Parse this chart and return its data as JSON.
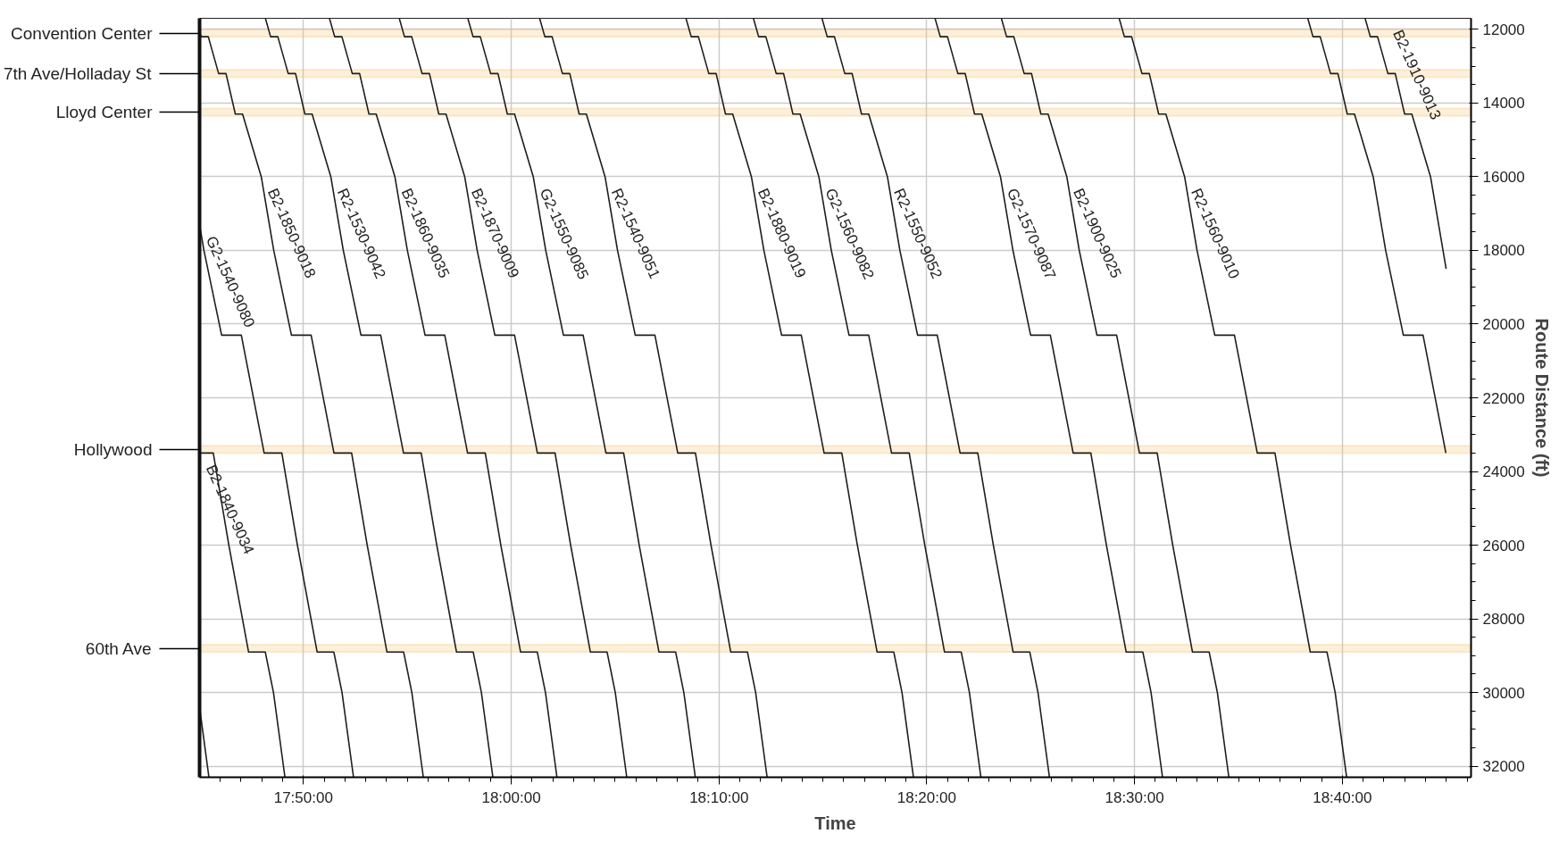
{
  "chart_data": {
    "type": "line",
    "xlabel": "Time",
    "ylabel": "Route Distance (ft)",
    "xlim": [
      17.75,
      18.77
    ],
    "ylim": [
      32300,
      11700
    ],
    "xticks": [
      {
        "value": 17.8333,
        "label": "17:50:00"
      },
      {
        "value": 18.0,
        "label": "18:00:00"
      },
      {
        "value": 18.1667,
        "label": "18:10:00"
      },
      {
        "value": 18.3333,
        "label": "18:20:00"
      },
      {
        "value": 18.5,
        "label": "18:30:00"
      },
      {
        "value": 18.6667,
        "label": "18:40:00"
      }
    ],
    "yticks": [
      12000,
      14000,
      16000,
      18000,
      20000,
      22000,
      24000,
      26000,
      28000,
      30000,
      32000
    ],
    "grid": true,
    "line_style": "solid",
    "bands": [
      {
        "axis": "y",
        "from": 12000,
        "to": 12200,
        "label": "Convention Center",
        "color": "#f6c46c"
      },
      {
        "axis": "y",
        "from": 13100,
        "to": 13300,
        "label": "7th Ave/Holladay St",
        "color": "#f6c46c"
      },
      {
        "axis": "y",
        "from": 14150,
        "to": 14350,
        "label": "Lloyd Center",
        "color": "#f6c46c"
      },
      {
        "axis": "y",
        "from": 23300,
        "to": 23500,
        "label": "Hollywood",
        "color": "#f6c46c"
      },
      {
        "axis": "y",
        "from": 28700,
        "to": 28900,
        "label": "60th Ave",
        "color": "#f6c46c"
      }
    ],
    "series": [
      {
        "color": "#1e1e1e",
        "x": [
          17.75,
          17.7575
        ],
        "values": [
          30400,
          32300
        ]
      },
      {
        "name": "B2-1840-9034",
        "color": "#1e1e1e",
        "x": [
          17.75,
          17.761,
          17.7735,
          17.7893,
          17.8027,
          17.8093,
          17.8185
        ],
        "values": [
          23500,
          23500,
          26000,
          28900,
          28900,
          30000,
          32300
        ]
      },
      {
        "name": "G2-1540-9080",
        "color": "#1e1e1e",
        "x": [
          17.75,
          17.7535,
          17.7677,
          17.7835,
          17.8018,
          17.816,
          17.8285,
          17.8443,
          17.8577,
          17.8643,
          17.8735
        ],
        "values": [
          17300,
          18000,
          20300,
          20300,
          23500,
          23500,
          26000,
          28900,
          28900,
          30000,
          32300
        ]
      },
      {
        "name": "B2-1850-9018",
        "color": "#1e1e1e",
        "x": [
          17.75,
          17.7512,
          17.757,
          17.7653,
          17.7712,
          17.7787,
          17.7845,
          17.7995,
          17.8095,
          17.8237,
          17.8395,
          17.8578,
          17.872,
          17.8845,
          17.9003,
          17.9137,
          17.9203,
          17.9295
        ],
        "values": [
          12050,
          12200,
          12200,
          13200,
          13200,
          14300,
          14300,
          16000,
          18000,
          20300,
          20300,
          23500,
          23500,
          26000,
          28900,
          28900,
          30000,
          32300
        ]
      },
      {
        "name": "R2-1530-9042",
        "color": "#1e1e1e",
        "x": [
          17.8028,
          17.807,
          17.8128,
          17.8211,
          17.827,
          17.8345,
          17.8403,
          17.8553,
          17.8653,
          17.8795,
          17.8953,
          17.9136,
          17.9278,
          17.9403,
          17.9561,
          17.9695,
          17.9761,
          17.9853
        ],
        "values": [
          11700,
          12200,
          12200,
          13200,
          13200,
          14300,
          14300,
          16000,
          18000,
          20300,
          20300,
          23500,
          23500,
          26000,
          28900,
          28900,
          30000,
          32300
        ]
      },
      {
        "name": "B2-1860-9035",
        "color": "#1e1e1e",
        "x": [
          17.8542,
          17.8584,
          17.8642,
          17.8725,
          17.8784,
          17.8859,
          17.8917,
          17.9067,
          17.9167,
          17.9309,
          17.9467,
          17.965,
          17.9792,
          17.9917,
          18.0075,
          18.0209,
          18.0275,
          18.0367
        ],
        "values": [
          11700,
          12200,
          12200,
          13200,
          13200,
          14300,
          14300,
          16000,
          18000,
          20300,
          20300,
          23500,
          23500,
          26000,
          28900,
          28900,
          30000,
          32300
        ]
      },
      {
        "name": "B2-1870-9009",
        "color": "#1e1e1e",
        "x": [
          17.9102,
          17.9144,
          17.9202,
          17.9285,
          17.9344,
          17.9419,
          17.9477,
          17.9627,
          17.9727,
          17.9869,
          18.0027,
          18.021,
          18.0352,
          18.0477,
          18.0635,
          18.0769,
          18.0835,
          18.0927
        ],
        "values": [
          11700,
          12200,
          12200,
          13200,
          13200,
          14300,
          14300,
          16000,
          18000,
          20300,
          20300,
          23500,
          23500,
          26000,
          28900,
          28900,
          30000,
          32300
        ]
      },
      {
        "name": "G2-1550-9085",
        "color": "#1e1e1e",
        "x": [
          17.9652,
          17.9694,
          17.9752,
          17.9835,
          17.9894,
          17.9969,
          18.0027,
          18.0177,
          18.0277,
          18.0419,
          18.0577,
          18.076,
          18.0902,
          18.1027,
          18.1185,
          18.1319,
          18.1385,
          18.1477
        ],
        "values": [
          11700,
          12200,
          12200,
          13200,
          13200,
          14300,
          14300,
          16000,
          18000,
          20300,
          20300,
          23500,
          23500,
          26000,
          28900,
          28900,
          30000,
          32300
        ]
      },
      {
        "name": "R2-1540-9051",
        "color": "#1e1e1e",
        "x": [
          18.0228,
          18.027,
          18.0328,
          18.0411,
          18.047,
          18.0545,
          18.0603,
          18.0753,
          18.0853,
          18.0995,
          18.1153,
          18.1336,
          18.1478,
          18.1603,
          18.1761,
          18.1895,
          18.1961,
          18.2053
        ],
        "values": [
          11700,
          12200,
          12200,
          13200,
          13200,
          14300,
          14300,
          16000,
          18000,
          20300,
          20300,
          23500,
          23500,
          26000,
          28900,
          28900,
          30000,
          32300
        ]
      },
      {
        "name": "B2-1880-9019",
        "color": "#1e1e1e",
        "x": [
          18.1402,
          18.1444,
          18.1502,
          18.1585,
          18.1644,
          18.1719,
          18.1777,
          18.1927,
          18.2027,
          18.2169,
          18.2327,
          18.251,
          18.2652,
          18.2777,
          18.2935,
          18.3069,
          18.3135,
          18.3227
        ],
        "values": [
          11700,
          12200,
          12200,
          13200,
          13200,
          14300,
          14300,
          16000,
          18000,
          20300,
          20300,
          23500,
          23500,
          26000,
          28900,
          28900,
          30000,
          32300
        ]
      },
      {
        "name": "G2-1560-9082",
        "color": "#1e1e1e",
        "x": [
          18.1943,
          18.1985,
          18.2043,
          18.2126,
          18.2185,
          18.226,
          18.2318,
          18.2468,
          18.2568,
          18.271,
          18.2868,
          18.3051,
          18.3193,
          18.3318,
          18.3476,
          18.361,
          18.3676,
          18.3768
        ],
        "values": [
          11700,
          12200,
          12200,
          13200,
          13200,
          14300,
          14300,
          16000,
          18000,
          20300,
          20300,
          23500,
          23500,
          26000,
          28900,
          28900,
          30000,
          32300
        ]
      },
      {
        "name": "R2-1550-9052",
        "color": "#1e1e1e",
        "x": [
          18.2493,
          18.2535,
          18.2593,
          18.2676,
          18.2735,
          18.281,
          18.2868,
          18.3018,
          18.3118,
          18.326,
          18.3418,
          18.3601,
          18.3743,
          18.3868,
          18.4026,
          18.416,
          18.4226,
          18.4318
        ],
        "values": [
          11700,
          12200,
          12200,
          13200,
          13200,
          14300,
          14300,
          16000,
          18000,
          20300,
          20300,
          23500,
          23500,
          26000,
          28900,
          28900,
          30000,
          32300
        ]
      },
      {
        "name": "G2-1570-9087",
        "color": "#1e1e1e",
        "x": [
          18.34,
          18.3442,
          18.35,
          18.3583,
          18.3642,
          18.3717,
          18.3775,
          18.3925,
          18.4025,
          18.4167,
          18.4325,
          18.4508,
          18.465,
          18.4775,
          18.4933,
          18.5067,
          18.5133,
          18.5225
        ],
        "values": [
          11700,
          12200,
          12200,
          13200,
          13200,
          14300,
          14300,
          16000,
          18000,
          20300,
          20300,
          23500,
          23500,
          26000,
          28900,
          28900,
          30000,
          32300
        ]
      },
      {
        "name": "B2-1900-9025",
        "color": "#1e1e1e",
        "x": [
          18.3932,
          18.3974,
          18.4032,
          18.4115,
          18.4174,
          18.4249,
          18.4307,
          18.4457,
          18.4557,
          18.4699,
          18.4857,
          18.504,
          18.5182,
          18.5307,
          18.5465,
          18.5599,
          18.5665,
          18.5757
        ],
        "values": [
          11700,
          12200,
          12200,
          13200,
          13200,
          14300,
          14300,
          16000,
          18000,
          20300,
          20300,
          23500,
          23500,
          26000,
          28900,
          28900,
          30000,
          32300
        ]
      },
      {
        "name": "R2-1560-9010",
        "color": "#1e1e1e",
        "x": [
          18.4877,
          18.4919,
          18.4977,
          18.506,
          18.5119,
          18.5194,
          18.5252,
          18.5402,
          18.5502,
          18.5644,
          18.5802,
          18.5985,
          18.6127,
          18.6252,
          18.641,
          18.6544,
          18.661,
          18.6702
        ],
        "values": [
          11700,
          12200,
          12200,
          13200,
          13200,
          14300,
          14300,
          16000,
          18000,
          20300,
          20300,
          23500,
          23500,
          26000,
          28900,
          28900,
          30000,
          32300
        ]
      },
      {
        "color": "#1e1e1e",
        "x": [
          18.639,
          18.6432,
          18.649,
          18.6573,
          18.6632,
          18.6707,
          18.6765,
          18.6915,
          18.7015,
          18.7157,
          18.7315,
          18.7498
        ],
        "values": [
          11700,
          12200,
          12200,
          13200,
          13200,
          14300,
          14300,
          16000,
          18000,
          20300,
          20300,
          23500
        ]
      },
      {
        "name": "B2-1910-9013",
        "color": "#1e1e1e",
        "x": [
          18.685,
          18.6892,
          18.695,
          18.7033,
          18.7092,
          18.7167,
          18.7225,
          18.7375,
          18.7475,
          18.75
        ],
        "values": [
          11700,
          12200,
          12200,
          13200,
          13200,
          14300,
          14300,
          16000,
          18000,
          18500
        ]
      }
    ]
  }
}
